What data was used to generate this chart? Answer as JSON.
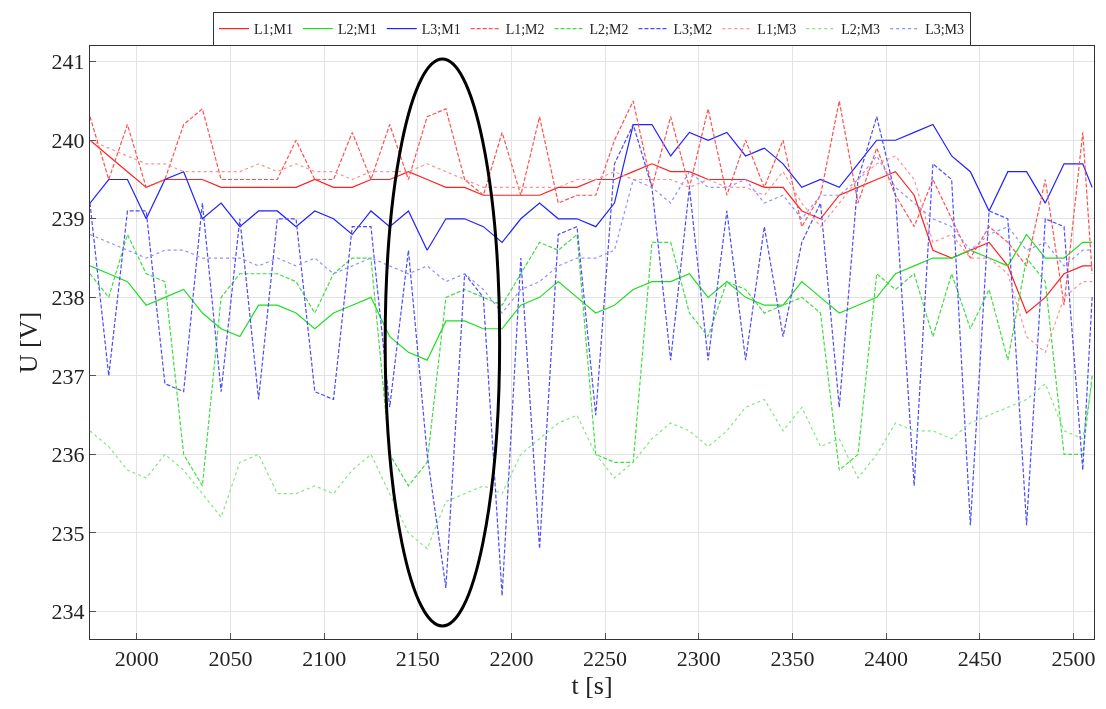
{
  "chart_data": {
    "type": "line",
    "xlabel": "t [s]",
    "ylabel": "U [V]",
    "x": [
      1975,
      1985,
      1995,
      2005,
      2015,
      2025,
      2035,
      2045,
      2055,
      2065,
      2075,
      2085,
      2095,
      2105,
      2115,
      2125,
      2135,
      2145,
      2155,
      2165,
      2175,
      2185,
      2195,
      2205,
      2215,
      2225,
      2235,
      2245,
      2255,
      2265,
      2275,
      2285,
      2295,
      2305,
      2315,
      2325,
      2335,
      2345,
      2355,
      2365,
      2375,
      2385,
      2395,
      2405,
      2415,
      2425,
      2435,
      2445,
      2455,
      2465,
      2475,
      2485,
      2495,
      2505,
      2510
    ],
    "xlim": [
      1975,
      2511
    ],
    "xticks": [
      2000,
      2050,
      2100,
      2150,
      2200,
      2250,
      2300,
      2350,
      2400,
      2450,
      2500
    ],
    "ylim": [
      233.65,
      241.2
    ],
    "yticks": [
      234,
      235,
      236,
      237,
      238,
      239,
      240,
      241
    ],
    "grid": true,
    "legend": "top",
    "marker": "none",
    "series": [
      {
        "name": "L1;M1",
        "color": "#ff2020",
        "line_style": "solid",
        "values": [
          240.0,
          239.8,
          239.6,
          239.4,
          239.5,
          239.5,
          239.5,
          239.4,
          239.4,
          239.4,
          239.4,
          239.4,
          239.5,
          239.4,
          239.4,
          239.5,
          239.5,
          239.6,
          239.5,
          239.4,
          239.4,
          239.3,
          239.3,
          239.3,
          239.3,
          239.4,
          239.4,
          239.5,
          239.5,
          239.6,
          239.7,
          239.6,
          239.6,
          239.5,
          239.5,
          239.5,
          239.4,
          239.4,
          239.1,
          239.0,
          239.3,
          239.4,
          239.5,
          239.6,
          239.3,
          238.6,
          238.5,
          238.6,
          238.7,
          238.4,
          237.8,
          238.0,
          238.3,
          238.4,
          238.4
        ]
      },
      {
        "name": "L2;M1",
        "color": "#20dd20",
        "line_style": "solid",
        "values": [
          238.4,
          238.3,
          238.2,
          237.9,
          238.0,
          238.1,
          237.8,
          237.6,
          237.5,
          237.9,
          237.9,
          237.8,
          237.6,
          237.8,
          237.9,
          238.0,
          237.5,
          237.3,
          237.2,
          237.7,
          237.7,
          237.6,
          237.6,
          237.9,
          238.0,
          238.2,
          238.0,
          237.8,
          237.9,
          238.1,
          238.2,
          238.2,
          238.3,
          238.0,
          238.2,
          238.0,
          237.9,
          237.9,
          238.2,
          238.0,
          237.8,
          237.9,
          238.0,
          238.3,
          238.4,
          238.5,
          238.5,
          238.6,
          238.5,
          238.4,
          238.8,
          238.5,
          238.5,
          238.7,
          238.7
        ]
      },
      {
        "name": "L3;M1",
        "color": "#2020ff",
        "line_style": "solid",
        "values": [
          239.2,
          239.5,
          239.5,
          239.0,
          239.5,
          239.6,
          239.0,
          239.2,
          238.9,
          239.1,
          239.1,
          238.9,
          239.1,
          239.0,
          238.8,
          239.1,
          238.9,
          239.1,
          238.6,
          239.0,
          239.0,
          238.9,
          238.7,
          239.0,
          239.2,
          239.0,
          239.0,
          238.9,
          239.2,
          240.2,
          240.2,
          239.8,
          240.1,
          240.0,
          240.1,
          239.8,
          239.9,
          239.7,
          239.4,
          239.5,
          239.4,
          239.7,
          240.0,
          240.0,
          240.1,
          240.2,
          239.8,
          239.6,
          239.1,
          239.6,
          239.6,
          239.2,
          239.7,
          239.7,
          239.4
        ]
      },
      {
        "name": "L1;M2",
        "color": "#ff5050",
        "line_style": "dashed",
        "values": [
          240.3,
          239.5,
          240.2,
          239.4,
          239.5,
          240.2,
          240.4,
          239.5,
          239.5,
          239.5,
          239.5,
          240.0,
          239.5,
          239.5,
          240.1,
          239.5,
          240.2,
          239.5,
          240.3,
          240.4,
          239.5,
          239.3,
          240.1,
          239.3,
          240.3,
          239.2,
          239.3,
          239.3,
          240.0,
          240.5,
          239.4,
          240.3,
          239.4,
          240.4,
          239.3,
          240.0,
          239.4,
          240.0,
          238.9,
          239.3,
          240.5,
          239.2,
          239.9,
          239.3,
          238.9,
          239.5,
          239.0,
          238.5,
          238.9,
          238.7,
          238.4,
          239.5,
          237.9,
          240.1,
          238.3
        ]
      },
      {
        "name": "L2;M2",
        "color": "#40dd40",
        "line_style": "dashed",
        "values": [
          238.3,
          238.0,
          238.8,
          238.3,
          238.2,
          236.0,
          235.6,
          238.0,
          238.3,
          238.3,
          238.3,
          238.2,
          237.8,
          238.3,
          238.5,
          238.5,
          236.0,
          235.6,
          235.9,
          238.0,
          238.1,
          238.0,
          237.9,
          238.3,
          238.7,
          238.6,
          238.8,
          236.0,
          235.9,
          235.9,
          238.7,
          238.7,
          237.8,
          237.5,
          238.2,
          238.1,
          237.8,
          237.9,
          238.0,
          237.8,
          235.8,
          236.0,
          238.3,
          238.1,
          238.3,
          237.5,
          238.3,
          237.6,
          238.1,
          237.2,
          238.5,
          238.2,
          236.0,
          236.0,
          237.0
        ]
      },
      {
        "name": "L3;M2",
        "color": "#4a4aff",
        "line_style": "dashed",
        "values": [
          239.2,
          237.0,
          239.1,
          239.1,
          236.9,
          236.8,
          239.2,
          236.8,
          239.0,
          236.7,
          239.0,
          239.0,
          236.8,
          236.7,
          238.9,
          238.9,
          236.6,
          238.6,
          236.0,
          234.3,
          238.3,
          238.0,
          234.2,
          238.5,
          234.8,
          238.8,
          238.9,
          236.5,
          239.7,
          240.2,
          239.4,
          237.2,
          239.4,
          237.2,
          239.1,
          237.2,
          238.9,
          237.5,
          238.7,
          239.2,
          236.6,
          239.5,
          240.3,
          239.3,
          235.6,
          239.7,
          239.5,
          235.1,
          239.1,
          239.0,
          235.1,
          239.0,
          238.9,
          235.8,
          238.0
        ]
      },
      {
        "name": "L1;M3",
        "color": "#ff9090",
        "line_style": "dotted",
        "values": [
          240.0,
          239.9,
          239.8,
          239.7,
          239.7,
          239.6,
          239.6,
          239.6,
          239.6,
          239.7,
          239.6,
          239.7,
          239.6,
          239.6,
          239.5,
          239.6,
          239.6,
          239.6,
          239.7,
          239.6,
          239.5,
          239.4,
          239.4,
          239.4,
          239.4,
          239.4,
          239.5,
          239.5,
          239.6,
          239.5,
          239.5,
          239.5,
          239.4,
          239.5,
          239.4,
          239.4,
          239.3,
          239.6,
          239.2,
          238.9,
          239.2,
          239.5,
          239.7,
          239.8,
          239.5,
          238.7,
          238.8,
          238.5,
          238.5,
          238.3,
          237.5,
          237.3,
          238.0,
          238.2,
          238.2
        ]
      },
      {
        "name": "L2;M3",
        "color": "#80e880",
        "line_style": "dotted",
        "values": [
          236.3,
          236.1,
          235.8,
          235.7,
          236.0,
          235.8,
          235.5,
          235.2,
          235.9,
          236.0,
          235.5,
          235.5,
          235.6,
          235.5,
          235.8,
          236.0,
          235.5,
          235.0,
          234.8,
          235.4,
          235.5,
          235.6,
          235.5,
          236.0,
          236.2,
          236.4,
          236.5,
          236.0,
          235.7,
          235.9,
          236.2,
          236.4,
          236.3,
          236.1,
          236.3,
          236.6,
          236.7,
          236.3,
          236.6,
          236.1,
          236.2,
          235.7,
          236.0,
          236.4,
          236.3,
          236.3,
          236.2,
          236.4,
          236.5,
          236.6,
          236.7,
          236.9,
          236.3,
          236.2,
          236.9
        ]
      },
      {
        "name": "L3;M3",
        "color": "#9090ff",
        "line_style": "dotted",
        "values": [
          238.8,
          238.7,
          238.6,
          238.5,
          238.6,
          238.6,
          238.5,
          238.5,
          238.5,
          238.4,
          238.5,
          238.4,
          238.5,
          238.3,
          238.4,
          238.5,
          238.4,
          238.3,
          238.4,
          238.2,
          238.3,
          238.1,
          237.8,
          238.1,
          238.2,
          238.4,
          238.5,
          238.5,
          238.6,
          239.5,
          239.4,
          239.2,
          239.6,
          239.4,
          239.4,
          239.5,
          239.2,
          239.3,
          239.0,
          239.3,
          239.3,
          239.5,
          239.8,
          239.4,
          239.2,
          239.0,
          238.9,
          238.6,
          238.8,
          238.9,
          238.6,
          238.7,
          238.4,
          238.6,
          238.6
        ]
      }
    ]
  }
}
